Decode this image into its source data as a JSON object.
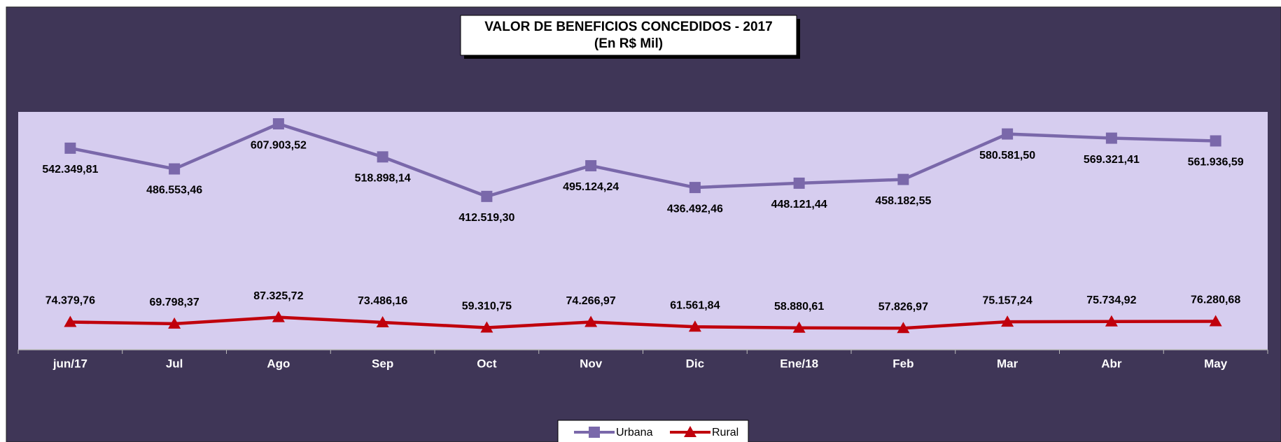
{
  "chart_data": {
    "type": "line",
    "title": "VALOR DE BENEFICIOS CONCEDIDOS - 2017",
    "subtitle": "(En R$ Mil)",
    "categories": [
      "jun/17",
      "Jul",
      "Ago",
      "Sep",
      "Oct",
      "Nov",
      "Dic",
      "Ene/18",
      "Feb",
      "Mar",
      "Abr",
      "May"
    ],
    "series": [
      {
        "name": "Urbana",
        "color": "#7a68aa",
        "marker": "square",
        "values": [
          542349.81,
          486553.46,
          607903.52,
          518898.14,
          412519.3,
          495124.24,
          436492.46,
          448121.44,
          458182.55,
          580581.5,
          569321.41,
          561936.59
        ],
        "value_labels": [
          "542.349,81",
          "486.553,46",
          "607.903,52",
          "518.898,14",
          "412.519,30",
          "495.124,24",
          "436.492,46",
          "448.121,44",
          "458.182,55",
          "580.581,50",
          "569.321,41",
          "561.936,59"
        ]
      },
      {
        "name": "Rural",
        "color": "#c0000c",
        "marker": "triangle",
        "values": [
          74379.76,
          69798.37,
          87325.72,
          73486.16,
          59310.75,
          74266.97,
          61561.84,
          58880.61,
          57826.97,
          75157.24,
          75734.92,
          76280.68
        ],
        "value_labels": [
          "74.379,76",
          "69.798,37",
          "87.325,72",
          "73.486,16",
          "59.310,75",
          "74.266,97",
          "61.561,84",
          "58.880,61",
          "57.826,97",
          "75.157,24",
          "75.734,92",
          "76.280,68"
        ]
      }
    ],
    "ylim": [
      0,
      640000
    ],
    "legend": "bottom"
  }
}
